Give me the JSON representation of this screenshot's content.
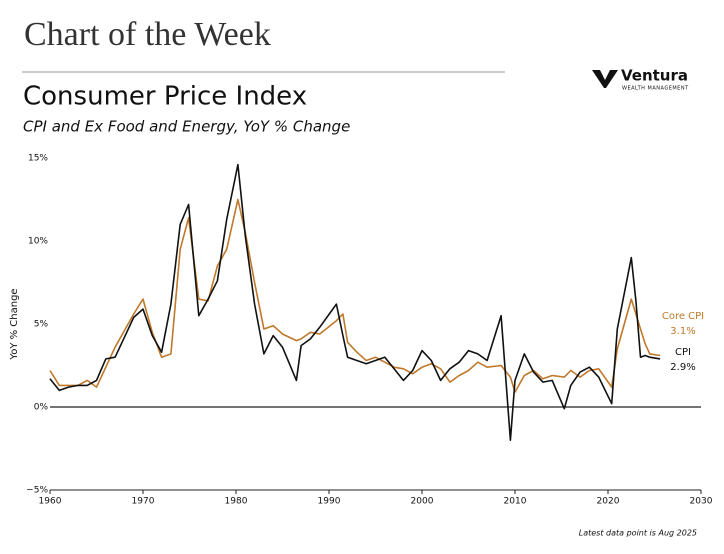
{
  "header": {
    "title": "Chart of the Week",
    "brand": "Ventura",
    "brand_sub": "WEALTH MANAGEMENT"
  },
  "chart_data": {
    "type": "line",
    "title": "Consumer Price Index",
    "subtitle": "CPI and Ex Food and Energy, YoY % Change",
    "ylabel": "YoY % Change",
    "note": "Latest data point is Aug 2025",
    "x": [
      1960,
      1961,
      1962,
      1963,
      1964,
      1965,
      1966,
      1967,
      1968,
      1969,
      1970,
      1971,
      1972,
      1973,
      1974,
      1974.9,
      1976,
      1977,
      1978,
      1979,
      1980.2,
      1981,
      1982,
      1983,
      1984,
      1985,
      1986.5,
      1987,
      1988,
      1989,
      1990.8,
      1991.5,
      1992,
      1993,
      1994,
      1995,
      1996,
      1997,
      1998,
      1999,
      2000,
      2001,
      2002,
      2003,
      2004,
      2005,
      2006,
      2007,
      2008.5,
      2009.5,
      2010,
      2011,
      2012,
      2013,
      2014,
      2015.3,
      2016,
      2017,
      2018,
      2019,
      2020.4,
      2021,
      2022.5,
      2023,
      2023.5,
      2024,
      2024.5,
      2025.6
    ],
    "series": [
      {
        "name": "Core CPI",
        "color": "#c0782a",
        "end_label": "3.1%",
        "values": [
          2.2,
          1.3,
          1.3,
          1.3,
          1.6,
          1.2,
          2.4,
          3.6,
          4.6,
          5.6,
          6.5,
          4.5,
          3.0,
          3.2,
          9.5,
          11.4,
          6.5,
          6.4,
          8.5,
          9.5,
          12.5,
          10.5,
          7.5,
          4.7,
          4.9,
          4.4,
          4.0,
          4.1,
          4.5,
          4.4,
          5.2,
          5.6,
          3.9,
          3.3,
          2.8,
          3.0,
          2.7,
          2.4,
          2.3,
          2.0,
          2.4,
          2.6,
          2.3,
          1.5,
          1.9,
          2.2,
          2.7,
          2.4,
          2.5,
          1.8,
          0.9,
          1.9,
          2.2,
          1.7,
          1.9,
          1.8,
          2.2,
          1.8,
          2.2,
          2.3,
          1.2,
          3.5,
          6.5,
          5.6,
          4.7,
          3.8,
          3.2,
          3.1
        ]
      },
      {
        "name": "CPI",
        "color": "#111111",
        "end_label": "2.9%",
        "values": [
          1.7,
          1.0,
          1.2,
          1.3,
          1.3,
          1.6,
          2.9,
          3.0,
          4.2,
          5.4,
          5.9,
          4.3,
          3.3,
          6.2,
          11.0,
          12.2,
          5.5,
          6.5,
          7.6,
          11.3,
          14.6,
          10.3,
          6.2,
          3.2,
          4.3,
          3.6,
          1.6,
          3.7,
          4.1,
          4.8,
          6.2,
          4.3,
          3.0,
          2.8,
          2.6,
          2.8,
          3.0,
          2.3,
          1.6,
          2.2,
          3.4,
          2.8,
          1.6,
          2.3,
          2.7,
          3.4,
          3.2,
          2.8,
          5.5,
          -2.0,
          1.6,
          3.2,
          2.1,
          1.5,
          1.6,
          -0.1,
          1.3,
          2.1,
          2.4,
          1.8,
          0.2,
          4.7,
          9.0,
          6.4,
          3.0,
          3.1,
          3.0,
          2.9
        ]
      }
    ],
    "xlim": [
      1960,
      2030
    ],
    "xticks": [
      1960,
      1970,
      1980,
      1990,
      2000,
      2010,
      2020,
      2030
    ],
    "ylim": [
      -5,
      15
    ],
    "yticks": [
      {
        "value": 15,
        "label": "15%"
      },
      {
        "value": 10,
        "label": "10%"
      },
      {
        "value": 5,
        "label": "5%"
      },
      {
        "value": 0,
        "label": "0%"
      },
      {
        "value": -5,
        "label": "−5%"
      }
    ]
  }
}
